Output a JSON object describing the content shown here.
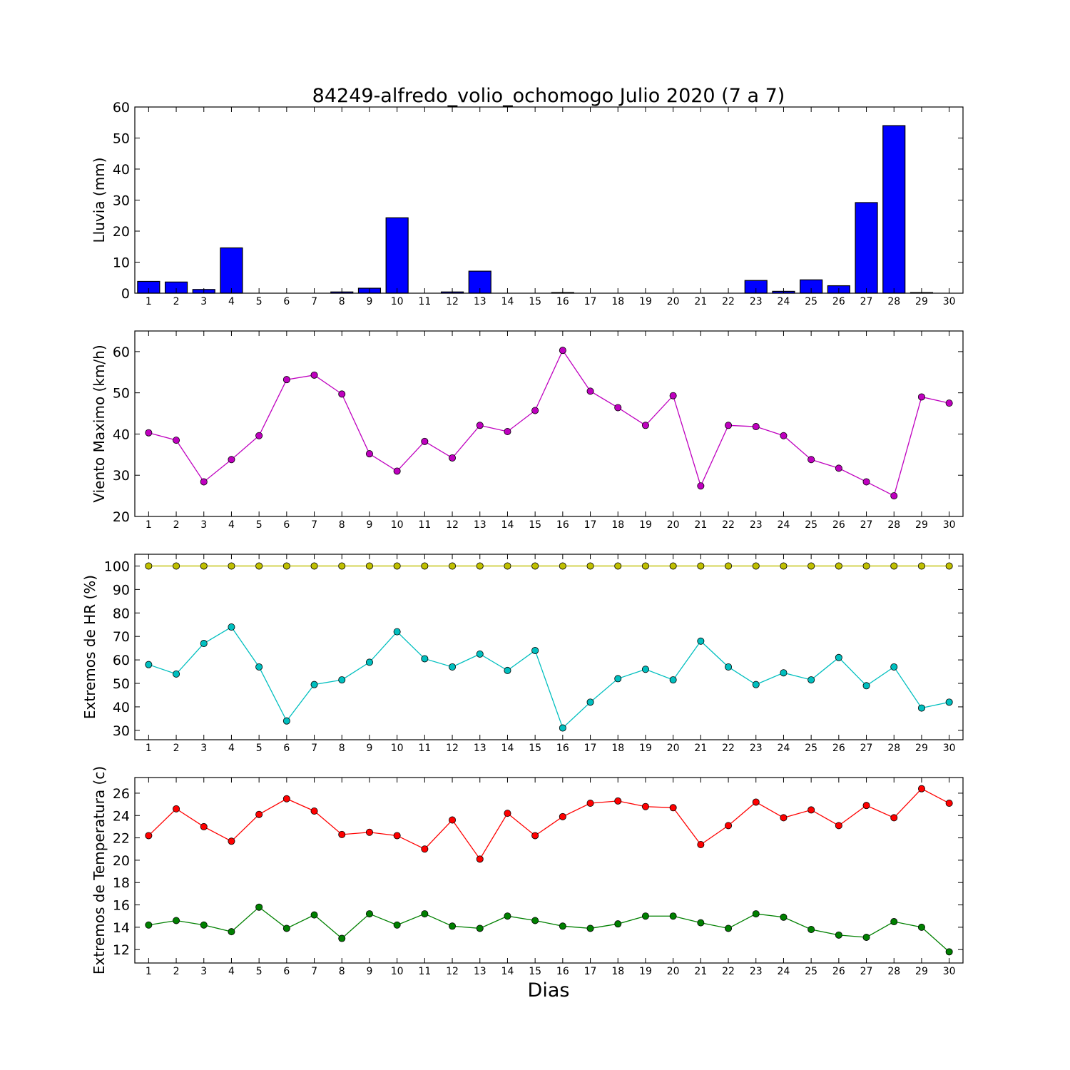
{
  "chart_data": [
    {
      "type": "bar",
      "title": "84249-alfredo_volio_ochomogo Julio 2020  (7 a 7)",
      "ylabel": "Lluvia (mm)",
      "xlabel": "",
      "ylim": [
        0,
        60
      ],
      "yticks": [
        0,
        10,
        20,
        30,
        40,
        50,
        60
      ],
      "grid": false,
      "categories": [
        "1",
        "2",
        "3",
        "4",
        "5",
        "6",
        "7",
        "8",
        "9",
        "10",
        "11",
        "12",
        "13",
        "14",
        "15",
        "16",
        "17",
        "18",
        "19",
        "20",
        "21",
        "22",
        "23",
        "24",
        "25",
        "26",
        "27",
        "28",
        "29",
        "30"
      ],
      "series": [
        {
          "color": "#0000ff",
          "values": [
            3.8,
            3.6,
            1.2,
            14.6,
            0,
            0,
            0,
            0.4,
            1.6,
            24.3,
            0,
            0.4,
            7.1,
            0,
            0,
            0.2,
            0,
            0,
            0,
            0,
            0,
            0,
            4.1,
            0.6,
            4.3,
            2.4,
            29.2,
            54,
            0.2,
            0
          ]
        }
      ]
    },
    {
      "type": "line",
      "ylabel": "Viento Maximo (km/h)",
      "xlabel": "",
      "ylim": [
        20,
        65
      ],
      "yticks": [
        20,
        30,
        40,
        50,
        60
      ],
      "grid": false,
      "categories": [
        "1",
        "2",
        "3",
        "4",
        "5",
        "6",
        "7",
        "8",
        "9",
        "10",
        "11",
        "12",
        "13",
        "14",
        "15",
        "16",
        "17",
        "18",
        "19",
        "20",
        "21",
        "22",
        "23",
        "24",
        "25",
        "26",
        "27",
        "28",
        "29",
        "30"
      ],
      "series": [
        {
          "color": "#bf00bf",
          "values": [
            40.3,
            38.5,
            28.4,
            33.8,
            39.6,
            53.2,
            54.3,
            49.7,
            35.2,
            31,
            38.2,
            34.2,
            42.1,
            40.6,
            45.7,
            60.3,
            50.4,
            46.4,
            42.1,
            49.3,
            27.4,
            42.1,
            41.8,
            39.6,
            33.8,
            31.7,
            28.4,
            25,
            49,
            47.5
          ]
        }
      ]
    },
    {
      "type": "line",
      "ylabel": "Extremos de HR (%)",
      "xlabel": "",
      "ylim": [
        26,
        105
      ],
      "yticks": [
        30,
        40,
        50,
        60,
        70,
        80,
        90,
        100
      ],
      "grid": false,
      "categories": [
        "1",
        "2",
        "3",
        "4",
        "5",
        "6",
        "7",
        "8",
        "9",
        "10",
        "11",
        "12",
        "13",
        "14",
        "15",
        "16",
        "17",
        "18",
        "19",
        "20",
        "21",
        "22",
        "23",
        "24",
        "25",
        "26",
        "27",
        "28",
        "29",
        "30"
      ],
      "series": [
        {
          "color": "#bfbf00",
          "values": [
            100,
            100,
            100,
            100,
            100,
            100,
            100,
            100,
            100,
            100,
            100,
            100,
            100,
            100,
            100,
            100,
            100,
            100,
            100,
            100,
            100,
            100,
            100,
            100,
            100,
            100,
            100,
            100,
            100,
            100
          ]
        },
        {
          "color": "#00bfbf",
          "values": [
            58,
            54,
            67,
            74,
            57,
            34,
            49.5,
            51.5,
            59,
            72,
            60.5,
            57,
            62.5,
            55.5,
            64,
            31,
            42,
            52,
            56,
            51.5,
            68,
            57,
            49.5,
            54.5,
            51.5,
            61,
            49,
            57,
            39.5,
            42
          ]
        }
      ]
    },
    {
      "type": "line",
      "ylabel": "Extremos de Temperatura (c)",
      "xlabel": "Dias",
      "ylim": [
        10.8,
        27.4
      ],
      "yticks": [
        12,
        14,
        16,
        18,
        20,
        22,
        24,
        26
      ],
      "grid": false,
      "categories": [
        "1",
        "2",
        "3",
        "4",
        "5",
        "6",
        "7",
        "8",
        "9",
        "10",
        "11",
        "12",
        "13",
        "14",
        "15",
        "16",
        "17",
        "18",
        "19",
        "20",
        "21",
        "22",
        "23",
        "24",
        "25",
        "26",
        "27",
        "28",
        "29",
        "30"
      ],
      "series": [
        {
          "color": "#ff0000",
          "values": [
            22.2,
            24.6,
            23,
            21.7,
            24.1,
            25.5,
            24.4,
            22.3,
            22.5,
            22.2,
            21,
            23.6,
            20.1,
            24.2,
            22.2,
            23.9,
            25.1,
            25.3,
            24.8,
            24.7,
            21.4,
            23.1,
            25.2,
            23.8,
            24.5,
            23.1,
            24.9,
            23.8,
            26.4,
            25.1
          ]
        },
        {
          "color": "#008000",
          "values": [
            14.2,
            14.6,
            14.2,
            13.6,
            15.8,
            13.9,
            15.1,
            13,
            15.2,
            14.2,
            15.2,
            14.1,
            13.9,
            15,
            14.6,
            14.1,
            13.9,
            14.3,
            15,
            15,
            14.4,
            13.9,
            15.2,
            14.9,
            13.8,
            13.3,
            13.1,
            14.5,
            14,
            11.8
          ]
        }
      ]
    }
  ]
}
